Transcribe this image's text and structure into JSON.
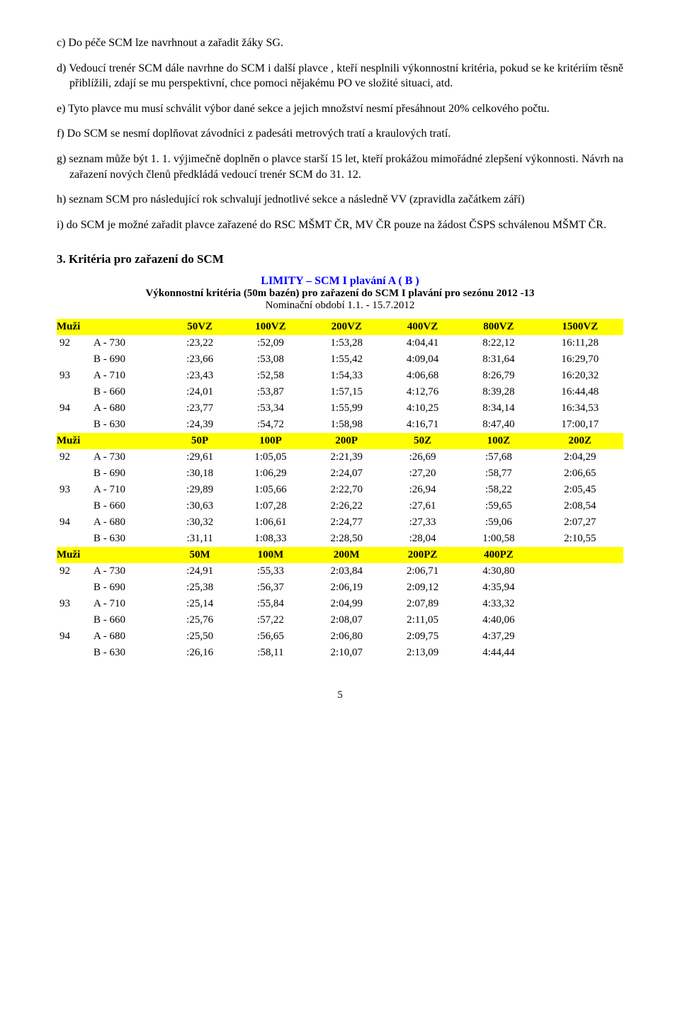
{
  "paragraphs": {
    "c": "c)  Do péče SCM lze navrhnout a zařadit žáky SG.",
    "d": "d) Vedoucí trenér SCM dále navrhne do SCM i další plavce , kteří nesplnili výkonnostní kritéria, pokud se ke kritériím těsně přiblížili, zdají se mu perspektivní, chce pomoci nějakému PO ve složité situaci, atd.",
    "e": "e) Tyto plavce mu musí schválit výbor dané sekce a jejich množství nesmí přesáhnout 20% celkového počtu.",
    "f": "f) Do SCM se nesmí doplňovat závodníci z padesáti metrových tratí a kraulových tratí.",
    "g": "g) seznam může být 1. 1. výjimečně doplněn o plavce starší 15 let, kteří prokážou mimořádné zlepšení výkonnosti. Návrh na zařazení nových členů předkládá vedoucí trenér SCM do 31. 12.",
    "h": "h) seznam SCM pro následující rok schvalují jednotlivé sekce a následně VV (zpravidla začátkem září)",
    "i": "i) do SCM  je možné zařadit plavce zařazené do RSC MŠMT ČR, MV ČR pouze na žádost ČSPS schválenou MŠMT ČR."
  },
  "section3": "3.  Kritéria pro zařazení do SCM",
  "limits_title": "LIMITY – SCM I plavání A ( B )",
  "subtitle": "Výkonnostní kritéria (50m bazén) pro zařazení do SCM I plavání pro sezónu 2012 -13",
  "nomin": "Nominační období 1.1. - 15.7.2012",
  "table": {
    "header_bg": "#ffff00",
    "blocks": [
      {
        "label": "Muži",
        "cols": [
          "50VZ",
          "100VZ",
          "200VZ",
          "400VZ",
          "800VZ",
          "1500VZ"
        ],
        "rows": [
          {
            "yr": "92",
            "grp": "A - 730",
            "v": [
              ":23,22",
              ":52,09",
              "1:53,28",
              "4:04,41",
              "8:22,12",
              "16:11,28"
            ]
          },
          {
            "yr": "",
            "grp": "B - 690",
            "v": [
              ":23,66",
              ":53,08",
              "1:55,42",
              "4:09,04",
              "8:31,64",
              "16:29,70"
            ]
          },
          {
            "yr": "93",
            "grp": "A - 710",
            "v": [
              ":23,43",
              ":52,58",
              "1:54,33",
              "4:06,68",
              "8:26,79",
              "16:20,32"
            ]
          },
          {
            "yr": "",
            "grp": "B - 660",
            "v": [
              ":24,01",
              ":53,87",
              "1:57,15",
              "4:12,76",
              "8:39,28",
              "16:44,48"
            ]
          },
          {
            "yr": "94",
            "grp": "A - 680",
            "v": [
              ":23,77",
              ":53,34",
              "1:55,99",
              "4:10,25",
              "8:34,14",
              "16:34,53"
            ]
          },
          {
            "yr": "",
            "grp": "B - 630",
            "v": [
              ":24,39",
              ":54,72",
              "1:58,98",
              "4:16,71",
              "8:47,40",
              "17:00,17"
            ]
          }
        ]
      },
      {
        "label": "Muži",
        "cols": [
          "50P",
          "100P",
          "200P",
          "50Z",
          "100Z",
          "200Z"
        ],
        "rows": [
          {
            "yr": "92",
            "grp": "A - 730",
            "v": [
              ":29,61",
              "1:05,05",
              "2:21,39",
              ":26,69",
              ":57,68",
              "2:04,29"
            ]
          },
          {
            "yr": "",
            "grp": "B - 690",
            "v": [
              ":30,18",
              "1:06,29",
              "2:24,07",
              ":27,20",
              ":58,77",
              "2:06,65"
            ]
          },
          {
            "yr": "93",
            "grp": "A - 710",
            "v": [
              ":29,89",
              "1:05,66",
              "2:22,70",
              ":26,94",
              ":58,22",
              "2:05,45"
            ]
          },
          {
            "yr": "",
            "grp": "B - 660",
            "v": [
              ":30,63",
              "1:07,28",
              "2:26,22",
              ":27,61",
              ":59,65",
              "2:08,54"
            ]
          },
          {
            "yr": "94",
            "grp": "A - 680",
            "v": [
              ":30,32",
              "1:06,61",
              "2:24,77",
              ":27,33",
              ":59,06",
              "2:07,27"
            ]
          },
          {
            "yr": "",
            "grp": "B - 630",
            "v": [
              ":31,11",
              "1:08,33",
              "2:28,50",
              ":28,04",
              "1:00,58",
              "2:10,55"
            ]
          }
        ]
      },
      {
        "label": "Muži",
        "cols": [
          "50M",
          "100M",
          "200M",
          "200PZ",
          "400PZ",
          ""
        ],
        "rows": [
          {
            "yr": "92",
            "grp": "A - 730",
            "v": [
              ":24,91",
              ":55,33",
              "2:03,84",
              "2:06,71",
              "4:30,80",
              ""
            ]
          },
          {
            "yr": "",
            "grp": "B - 690",
            "v": [
              ":25,38",
              ":56,37",
              "2:06,19",
              "2:09,12",
              "4:35,94",
              ""
            ]
          },
          {
            "yr": "93",
            "grp": "A - 710",
            "v": [
              ":25,14",
              ":55,84",
              "2:04,99",
              "2:07,89",
              "4:33,32",
              ""
            ]
          },
          {
            "yr": "",
            "grp": "B - 660",
            "v": [
              ":25,76",
              ":57,22",
              "2:08,07",
              "2:11,05",
              "4:40,06",
              ""
            ]
          },
          {
            "yr": "94",
            "grp": "A - 680",
            "v": [
              ":25,50",
              ":56,65",
              "2:06,80",
              "2:09,75",
              "4:37,29",
              ""
            ]
          },
          {
            "yr": "",
            "grp": "B - 630",
            "v": [
              ":26,16",
              ":58,11",
              "2:10,07",
              "2:13,09",
              "4:44,44",
              ""
            ]
          }
        ]
      }
    ]
  },
  "pagenum": "5"
}
